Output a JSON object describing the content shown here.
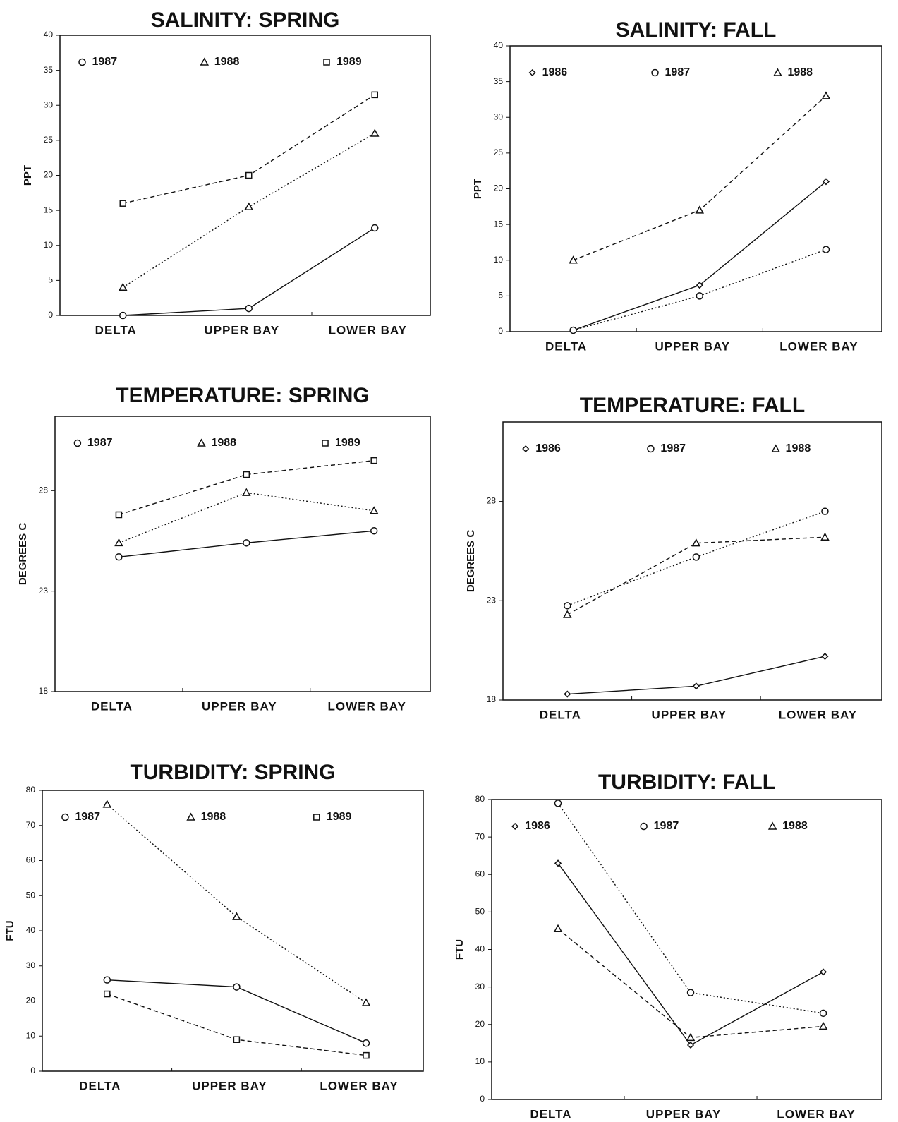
{
  "chart_data": [
    {
      "type": "line",
      "title": "SALINITY: SPRING",
      "y_label": "PPT",
      "categories": [
        "DELTA",
        "UPPER BAY",
        "LOWER BAY"
      ],
      "ylim": [
        0,
        40
      ],
      "yticks": [
        0,
        5,
        10,
        15,
        20,
        25,
        30,
        35,
        40
      ],
      "series": [
        {
          "name": "1987",
          "color": "#111",
          "marker": "circle",
          "line": "solid",
          "values": [
            0,
            1,
            12.5
          ]
        },
        {
          "name": "1988",
          "color": "#111",
          "marker": "triangle",
          "line": "dotted",
          "values": [
            4,
            15.5,
            26
          ]
        },
        {
          "name": "1989",
          "color": "#111",
          "marker": "square",
          "line": "dashed",
          "values": [
            16,
            20,
            31.5
          ]
        }
      ]
    },
    {
      "type": "line",
      "title": "SALINITY: FALL",
      "y_label": "PPT",
      "categories": [
        "DELTA",
        "UPPER BAY",
        "LOWER BAY"
      ],
      "ylim": [
        0,
        40
      ],
      "yticks": [
        0,
        5,
        10,
        15,
        20,
        25,
        30,
        35,
        40
      ],
      "series": [
        {
          "name": "1986",
          "color": "#111",
          "marker": "diamond",
          "line": "solid",
          "values": [
            0.2,
            6.5,
            21
          ]
        },
        {
          "name": "1987",
          "color": "#111",
          "marker": "circle",
          "line": "dotted",
          "values": [
            0.2,
            5,
            11.5
          ]
        },
        {
          "name": "1988",
          "color": "#111",
          "marker": "triangle",
          "line": "dashed",
          "values": [
            10,
            17,
            33
          ]
        }
      ]
    },
    {
      "type": "line",
      "title": "TEMPERATURE: SPRING",
      "y_label": "DEGREES C",
      "categories": [
        "DELTA",
        "UPPER BAY",
        "LOWER BAY"
      ],
      "ylim": [
        18,
        31.7
      ],
      "yticks": [
        18,
        23,
        28
      ],
      "series": [
        {
          "name": "1987",
          "color": "#111",
          "marker": "circle",
          "line": "solid",
          "values": [
            24.7,
            25.4,
            26.0
          ]
        },
        {
          "name": "1988",
          "color": "#111",
          "marker": "triangle",
          "line": "dotted",
          "values": [
            25.4,
            27.9,
            27.0
          ]
        },
        {
          "name": "1989",
          "color": "#111",
          "marker": "square",
          "line": "dashed",
          "values": [
            26.8,
            28.8,
            29.5
          ]
        }
      ]
    },
    {
      "type": "line",
      "title": "TEMPERATURE: FALL",
      "y_label": "DEGREES C",
      "categories": [
        "DELTA",
        "UPPER BAY",
        "LOWER BAY"
      ],
      "ylim": [
        18,
        32
      ],
      "yticks": [
        18,
        23,
        28
      ],
      "series": [
        {
          "name": "1986",
          "color": "#111",
          "marker": "diamond",
          "line": "solid",
          "values": [
            18.3,
            18.7,
            20.2
          ]
        },
        {
          "name": "1987",
          "color": "#111",
          "marker": "circle",
          "line": "dotted",
          "values": [
            22.75,
            25.2,
            27.5
          ]
        },
        {
          "name": "1988",
          "color": "#111",
          "marker": "triangle",
          "line": "dashed",
          "values": [
            22.3,
            25.9,
            26.2
          ]
        }
      ]
    },
    {
      "type": "line",
      "title": "TURBIDITY: SPRING",
      "y_label": "FTU",
      "categories": [
        "DELTA",
        "UPPER BAY",
        "LOWER BAY"
      ],
      "ylim": [
        0,
        80
      ],
      "yticks": [
        0,
        10,
        20,
        30,
        40,
        50,
        60,
        70,
        80
      ],
      "series": [
        {
          "name": "1987",
          "color": "#111",
          "marker": "circle",
          "line": "solid",
          "values": [
            26,
            24,
            8
          ]
        },
        {
          "name": "1988",
          "color": "#111",
          "marker": "triangle",
          "line": "dotted",
          "values": [
            76,
            44,
            19.5
          ]
        },
        {
          "name": "1989",
          "color": "#111",
          "marker": "square",
          "line": "dashed",
          "values": [
            22,
            9,
            4.5
          ]
        }
      ]
    },
    {
      "type": "line",
      "title": "TURBIDITY: FALL",
      "y_label": "FTU",
      "categories": [
        "DELTA",
        "UPPER BAY",
        "LOWER BAY"
      ],
      "ylim": [
        0,
        80
      ],
      "yticks": [
        0,
        10,
        20,
        30,
        40,
        50,
        60,
        70,
        80
      ],
      "series": [
        {
          "name": "1986",
          "color": "#111",
          "marker": "diamond",
          "line": "solid",
          "values": [
            63,
            14.5,
            34
          ]
        },
        {
          "name": "1987",
          "color": "#111",
          "marker": "circle",
          "line": "dotted",
          "values": [
            79,
            28.5,
            23
          ]
        },
        {
          "name": "1988",
          "color": "#111",
          "marker": "triangle",
          "line": "dashed",
          "values": [
            45.5,
            16.5,
            19.5
          ]
        }
      ]
    }
  ]
}
